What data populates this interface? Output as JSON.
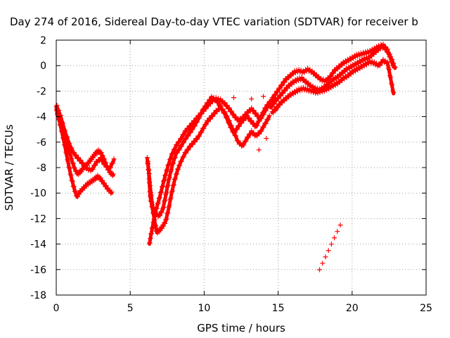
{
  "chart_data": {
    "type": "scatter",
    "title": "Day 274 of 2016, Sidereal Day-to-day VTEC variation (SDTVAR) for receiver b",
    "xlabel": "GPS time / hours",
    "ylabel": "SDTVAR / TECUs",
    "xlim": [
      0,
      25
    ],
    "ylim": [
      -18,
      2
    ],
    "xticks": [
      "0",
      "5",
      "10",
      "15",
      "20",
      "25"
    ],
    "yticks": [
      "2",
      "0",
      "-2",
      "-4",
      "-6",
      "-8",
      "-10",
      "-12",
      "-14",
      "-16",
      "-18"
    ],
    "grid": true,
    "marker": "+",
    "color": "#ff0000",
    "series": [
      {
        "points": [
          [
            0.0,
            -3.3
          ],
          [
            0.1,
            -3.8
          ],
          [
            0.25,
            -4.3
          ],
          [
            0.45,
            -5.0
          ],
          [
            0.65,
            -5.8
          ],
          [
            0.85,
            -6.6
          ],
          [
            1.05,
            -7.4
          ],
          [
            1.25,
            -8.1
          ],
          [
            1.45,
            -8.5
          ],
          [
            1.65,
            -8.3
          ],
          [
            1.85,
            -8.0
          ],
          [
            2.05,
            -7.8
          ],
          [
            2.25,
            -7.5
          ],
          [
            2.45,
            -7.2
          ],
          [
            2.65,
            -6.9
          ],
          [
            2.85,
            -6.7
          ],
          [
            3.05,
            -6.9
          ],
          [
            3.25,
            -7.4
          ],
          [
            3.45,
            -8.0
          ],
          [
            3.65,
            -8.4
          ],
          [
            3.85,
            -8.6
          ]
        ]
      },
      {
        "points": [
          [
            0.05,
            -3.6
          ],
          [
            0.2,
            -4.3
          ],
          [
            0.4,
            -5.3
          ],
          [
            0.6,
            -6.4
          ],
          [
            0.8,
            -7.6
          ],
          [
            1.0,
            -8.7
          ],
          [
            1.2,
            -9.6
          ],
          [
            1.4,
            -10.3
          ],
          [
            1.6,
            -9.9
          ],
          [
            1.85,
            -9.6
          ],
          [
            2.1,
            -9.3
          ],
          [
            2.35,
            -9.1
          ],
          [
            2.6,
            -8.9
          ],
          [
            2.8,
            -8.7
          ],
          [
            3.0,
            -8.9
          ],
          [
            3.25,
            -9.3
          ],
          [
            3.5,
            -9.7
          ],
          [
            3.75,
            -10.0
          ]
        ]
      },
      {
        "points": [
          [
            0.05,
            -3.2
          ],
          [
            0.3,
            -4.0
          ],
          [
            0.6,
            -5.2
          ],
          [
            0.9,
            -6.2
          ],
          [
            1.2,
            -6.9
          ],
          [
            1.5,
            -7.3
          ],
          [
            1.8,
            -7.7
          ],
          [
            2.1,
            -8.1
          ],
          [
            2.4,
            -8.2
          ],
          [
            2.7,
            -7.6
          ],
          [
            3.0,
            -7.3
          ],
          [
            3.3,
            -7.8
          ],
          [
            3.6,
            -8.1
          ],
          [
            3.9,
            -7.4
          ]
        ]
      },
      {
        "points": [
          [
            6.15,
            -7.3
          ],
          [
            6.25,
            -8.3
          ],
          [
            6.35,
            -10.3
          ],
          [
            6.5,
            -11.2
          ],
          [
            6.65,
            -12.2
          ],
          [
            6.8,
            -13.1
          ],
          [
            7.0,
            -12.9
          ],
          [
            7.2,
            -12.6
          ],
          [
            7.4,
            -12.2
          ],
          [
            7.6,
            -11.2
          ],
          [
            7.8,
            -10.0
          ],
          [
            8.0,
            -9.0
          ],
          [
            8.2,
            -8.2
          ],
          [
            8.4,
            -7.6
          ],
          [
            8.7,
            -6.9
          ],
          [
            9.0,
            -6.4
          ],
          [
            9.3,
            -6.0
          ],
          [
            9.6,
            -5.6
          ],
          [
            9.9,
            -5.0
          ],
          [
            10.2,
            -4.4
          ],
          [
            10.5,
            -4.0
          ],
          [
            10.8,
            -3.6
          ],
          [
            11.1,
            -3.3
          ],
          [
            11.4,
            -3.7
          ],
          [
            11.7,
            -4.4
          ],
          [
            12.0,
            -5.2
          ],
          [
            12.3,
            -6.0
          ],
          [
            12.6,
            -6.3
          ],
          [
            12.9,
            -5.7
          ],
          [
            13.2,
            -5.2
          ],
          [
            13.5,
            -5.5
          ],
          [
            13.8,
            -5.2
          ],
          [
            14.1,
            -4.6
          ],
          [
            14.4,
            -4.0
          ]
        ]
      },
      {
        "points": [
          [
            6.3,
            -14.0
          ],
          [
            6.4,
            -13.3
          ],
          [
            6.55,
            -12.4
          ],
          [
            6.75,
            -11.3
          ],
          [
            6.95,
            -10.5
          ],
          [
            7.15,
            -9.6
          ],
          [
            7.35,
            -8.7
          ],
          [
            7.55,
            -7.9
          ],
          [
            7.8,
            -7.0
          ],
          [
            8.1,
            -6.3
          ],
          [
            8.4,
            -5.8
          ],
          [
            8.7,
            -5.2
          ],
          [
            9.0,
            -4.8
          ],
          [
            9.3,
            -4.4
          ],
          [
            9.6,
            -4.0
          ],
          [
            9.9,
            -3.6
          ],
          [
            10.2,
            -3.2
          ],
          [
            10.5,
            -2.8
          ],
          [
            10.8,
            -2.6
          ],
          [
            11.1,
            -2.7
          ],
          [
            11.4,
            -3.0
          ],
          [
            11.7,
            -3.4
          ],
          [
            12.0,
            -3.9
          ],
          [
            12.3,
            -4.3
          ],
          [
            12.6,
            -4.1
          ],
          [
            12.9,
            -3.7
          ],
          [
            13.2,
            -3.4
          ],
          [
            13.5,
            -3.8
          ],
          [
            13.8,
            -4.2
          ],
          [
            14.1,
            -3.6
          ],
          [
            14.4,
            -3.0
          ],
          [
            14.7,
            -2.5
          ]
        ]
      },
      {
        "points": [
          [
            6.2,
            -7.6
          ],
          [
            6.35,
            -9.5
          ],
          [
            6.5,
            -11.0
          ],
          [
            6.7,
            -11.6
          ],
          [
            6.95,
            -11.8
          ],
          [
            7.2,
            -11.3
          ],
          [
            7.4,
            -10.2
          ],
          [
            7.6,
            -9.0
          ],
          [
            7.85,
            -7.8
          ],
          [
            8.1,
            -6.9
          ],
          [
            8.4,
            -6.4
          ],
          [
            8.7,
            -5.8
          ],
          [
            9.0,
            -5.3
          ],
          [
            9.3,
            -4.8
          ],
          [
            9.6,
            -4.2
          ],
          [
            9.9,
            -3.5
          ],
          [
            10.2,
            -3.0
          ],
          [
            10.5,
            -2.5
          ],
          [
            10.8,
            -2.7
          ],
          [
            11.1,
            -3.2
          ],
          [
            11.4,
            -3.8
          ],
          [
            11.7,
            -4.6
          ],
          [
            12.0,
            -5.3
          ],
          [
            12.3,
            -4.8
          ],
          [
            12.6,
            -4.3
          ],
          [
            12.9,
            -4.0
          ],
          [
            13.2,
            -4.4
          ],
          [
            13.5,
            -4.8
          ],
          [
            13.8,
            -4.1
          ],
          [
            14.1,
            -3.4
          ],
          [
            14.4,
            -2.9
          ]
        ]
      },
      {
        "points": [
          [
            14.5,
            -3.3
          ],
          [
            14.8,
            -2.8
          ],
          [
            15.1,
            -2.4
          ],
          [
            15.4,
            -2.0
          ],
          [
            15.7,
            -1.6
          ],
          [
            16.0,
            -1.3
          ],
          [
            16.3,
            -1.1
          ],
          [
            16.6,
            -1.0
          ],
          [
            16.9,
            -1.3
          ],
          [
            17.2,
            -1.6
          ],
          [
            17.5,
            -1.8
          ],
          [
            17.8,
            -1.9
          ],
          [
            18.1,
            -1.7
          ],
          [
            18.4,
            -1.4
          ],
          [
            18.7,
            -1.1
          ],
          [
            19.0,
            -0.9
          ],
          [
            19.3,
            -0.6
          ],
          [
            19.6,
            -0.3
          ],
          [
            19.9,
            -0.1
          ],
          [
            20.2,
            0.1
          ],
          [
            20.5,
            0.3
          ],
          [
            20.8,
            0.5
          ],
          [
            21.1,
            0.6
          ],
          [
            21.4,
            0.9
          ],
          [
            21.7,
            1.2
          ],
          [
            22.0,
            1.5
          ],
          [
            22.3,
            1.3
          ],
          [
            22.6,
            0.6
          ],
          [
            22.8,
            -0.1
          ]
        ]
      },
      {
        "points": [
          [
            14.6,
            -2.6
          ],
          [
            14.9,
            -2.1
          ],
          [
            15.2,
            -1.6
          ],
          [
            15.5,
            -1.1
          ],
          [
            15.8,
            -0.8
          ],
          [
            16.1,
            -0.5
          ],
          [
            16.4,
            -0.4
          ],
          [
            16.7,
            -0.5
          ],
          [
            17.0,
            -0.3
          ],
          [
            17.3,
            -0.5
          ],
          [
            17.6,
            -0.8
          ],
          [
            17.9,
            -1.1
          ],
          [
            18.2,
            -1.2
          ],
          [
            18.5,
            -0.9
          ],
          [
            18.8,
            -0.4
          ],
          [
            19.1,
            -0.1
          ],
          [
            19.4,
            0.2
          ],
          [
            19.7,
            0.4
          ],
          [
            20.0,
            0.6
          ],
          [
            20.3,
            0.8
          ],
          [
            20.6,
            0.9
          ],
          [
            20.9,
            1.0
          ],
          [
            21.2,
            1.1
          ],
          [
            21.5,
            1.3
          ],
          [
            21.8,
            1.5
          ],
          [
            22.1,
            1.6
          ],
          [
            22.4,
            1.2
          ],
          [
            22.7,
            0.4
          ],
          [
            22.9,
            -0.2
          ]
        ]
      },
      {
        "points": [
          [
            14.6,
            -3.7
          ],
          [
            14.9,
            -3.3
          ],
          [
            15.2,
            -2.9
          ],
          [
            15.5,
            -2.6
          ],
          [
            15.8,
            -2.3
          ],
          [
            16.1,
            -2.1
          ],
          [
            16.4,
            -1.9
          ],
          [
            16.7,
            -1.8
          ],
          [
            17.0,
            -1.9
          ],
          [
            17.3,
            -2.0
          ],
          [
            17.6,
            -2.1
          ],
          [
            17.9,
            -2.0
          ],
          [
            18.2,
            -1.9
          ],
          [
            18.5,
            -1.7
          ],
          [
            18.8,
            -1.5
          ],
          [
            19.1,
            -1.3
          ],
          [
            19.4,
            -1.0
          ],
          [
            19.7,
            -0.8
          ],
          [
            20.0,
            -0.5
          ],
          [
            20.3,
            -0.3
          ],
          [
            20.6,
            -0.1
          ],
          [
            20.9,
            0.1
          ],
          [
            21.2,
            0.3
          ],
          [
            21.5,
            0.2
          ],
          [
            21.8,
            0.0
          ],
          [
            22.1,
            0.4
          ],
          [
            22.4,
            0.2
          ],
          [
            22.6,
            -1.0
          ],
          [
            22.8,
            -2.2
          ]
        ]
      },
      {
        "points": [
          [
            17.8,
            -16.1
          ],
          [
            18.0,
            -15.6
          ],
          [
            18.2,
            -15.1
          ],
          [
            18.4,
            -14.6
          ],
          [
            18.6,
            -14.1
          ],
          [
            18.8,
            -13.6
          ],
          [
            19.0,
            -13.1
          ],
          [
            19.2,
            -12.6
          ]
        ]
      },
      {
        "points": [
          [
            13.7,
            -6.7
          ],
          [
            14.2,
            -5.8
          ],
          [
            14.9,
            -3.5
          ],
          [
            12.0,
            -2.6
          ],
          [
            13.2,
            -2.7
          ],
          [
            14.0,
            -2.5
          ],
          [
            14.8,
            -3.6
          ]
        ]
      }
    ]
  }
}
